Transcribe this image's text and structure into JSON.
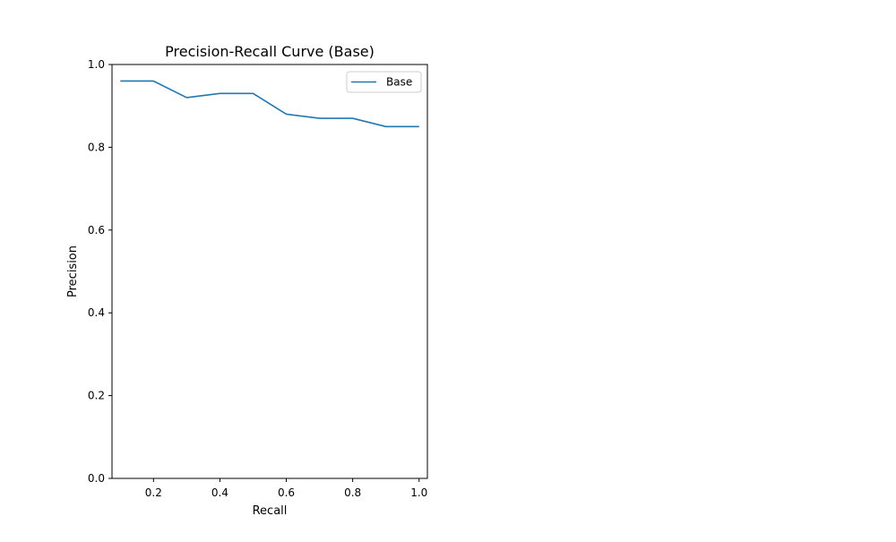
{
  "chart_data": {
    "type": "line",
    "title": "Precision-Recall Curve (Base)",
    "xlabel": "Recall",
    "ylabel": "Precision",
    "xlim": [
      0.075,
      1.025
    ],
    "ylim": [
      0.0,
      1.0
    ],
    "xticks": [
      0.2,
      0.4,
      0.6,
      0.8,
      1.0
    ],
    "xtick_labels": [
      "0.2",
      "0.4",
      "0.6",
      "0.8",
      "1.0"
    ],
    "yticks": [
      0.0,
      0.2,
      0.4,
      0.6,
      0.8,
      1.0
    ],
    "ytick_labels": [
      "0.0",
      "0.2",
      "0.4",
      "0.6",
      "0.8",
      "1.0"
    ],
    "grid": false,
    "legend_position": "upper right",
    "series": [
      {
        "name": "Base",
        "color": "#1f77b4",
        "x": [
          0.1,
          0.2,
          0.3,
          0.4,
          0.5,
          0.6,
          0.7,
          0.8,
          0.9,
          1.0
        ],
        "y": [
          0.96,
          0.96,
          0.92,
          0.93,
          0.93,
          0.88,
          0.87,
          0.87,
          0.85,
          0.85
        ]
      }
    ]
  }
}
